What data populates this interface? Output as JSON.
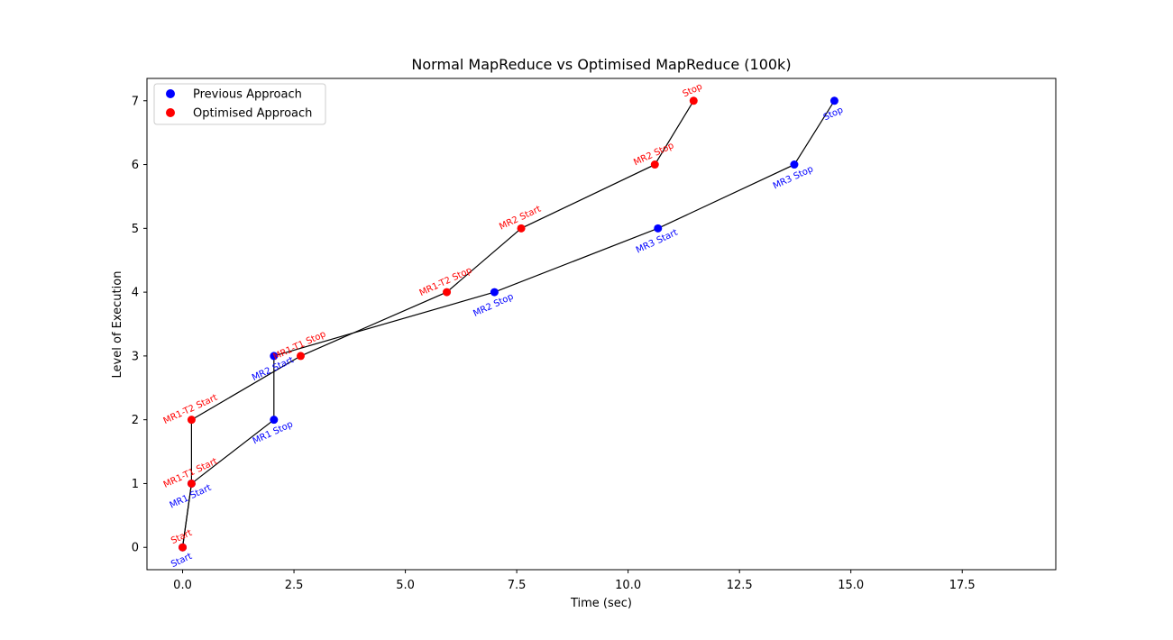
{
  "chart_data": {
    "type": "line",
    "title": "Normal MapReduce vs Optimised MapReduce  (100k)",
    "xlabel": "Time (sec)",
    "ylabel": "Level of Execution",
    "xlim": [
      -0.8,
      19.6
    ],
    "ylim": [
      -0.35,
      7.35
    ],
    "xticks": [
      0.0,
      2.5,
      5.0,
      7.5,
      10.0,
      12.5,
      15.0,
      17.5
    ],
    "xtick_labels": [
      "0.0",
      "2.5",
      "5.0",
      "7.5",
      "10.0",
      "12.5",
      "15.0",
      "17.5"
    ],
    "yticks": [
      0,
      1,
      2,
      3,
      4,
      5,
      6,
      7
    ],
    "ytick_labels": [
      "0",
      "1",
      "2",
      "3",
      "4",
      "5",
      "6",
      "7"
    ],
    "grid": false,
    "legend_position": "top-left",
    "line_color": "#000000",
    "series": [
      {
        "name": "Previous Approach",
        "color": "#0000ff",
        "label_placement": "below",
        "x": [
          0.0,
          0.2,
          2.05,
          2.05,
          7.0,
          10.67,
          13.73,
          14.63
        ],
        "y": [
          0,
          1,
          2,
          3,
          4,
          5,
          6,
          7
        ],
        "labels": [
          "Start",
          "MR1 Start",
          "MR1 Stop",
          "MR2 Start",
          "MR2 Stop",
          "MR3 Start",
          "MR3 Stop",
          "Stop"
        ]
      },
      {
        "name": "Optimised Approach",
        "color": "#ff0000",
        "label_placement": "above",
        "x": [
          0.0,
          0.2,
          0.2,
          2.65,
          5.93,
          7.6,
          10.6,
          11.47
        ],
        "y": [
          0,
          1,
          2,
          3,
          4,
          5,
          6,
          7
        ],
        "labels": [
          "Start",
          "MR1-T1 Start",
          "MR1-T2 Start",
          "MR1-T1 Stop",
          "MR1-T2 Stop",
          "MR2 Start",
          "MR2 Stop",
          "Stop"
        ]
      }
    ]
  }
}
